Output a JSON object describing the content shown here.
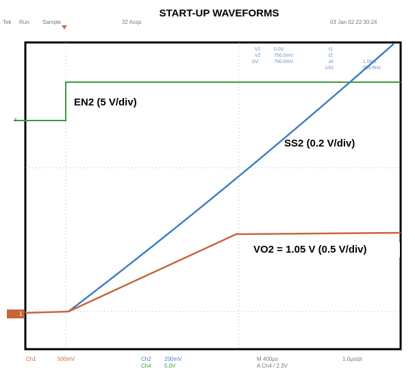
{
  "title": "START-UP WAVEFORMS",
  "header": {
    "brand": "Tek",
    "mode": "Run",
    "acq": "Sample",
    "count": "32 Acqs",
    "date": "03 Jan 02 22:30:24"
  },
  "cursors": {
    "v1": "V1",
    "v1_val": "0.0V",
    "v2": "V2",
    "v2_val": "750.0mV",
    "dv": "ΔV",
    "dv_val": "750.0mV",
    "t1": "t1",
    "t2": "t2",
    "dt": "Δt",
    "dt_val": "1.0ms",
    "inv": "1/Δt",
    "inv_val": "999.6Hz"
  },
  "markers": {
    "ch1": "1",
    "ch4": "4"
  },
  "traces": {
    "en2": "EN2 (5 V/div)",
    "ss2": "SS2 (0.2 V/div)",
    "vo2": "VO2 = 1.05 V (0.5 V/div)"
  },
  "footer": {
    "ch1": "Ch1",
    "ch1_scale": "500mV",
    "ch2": "Ch2",
    "ch2_scale": "200mV",
    "ch4": "Ch4",
    "ch4_scale": "5.0V",
    "time": "M 400μs",
    "trig": "A Ch4 / 2.3V",
    "rate": "1.0μs/pt"
  }
}
